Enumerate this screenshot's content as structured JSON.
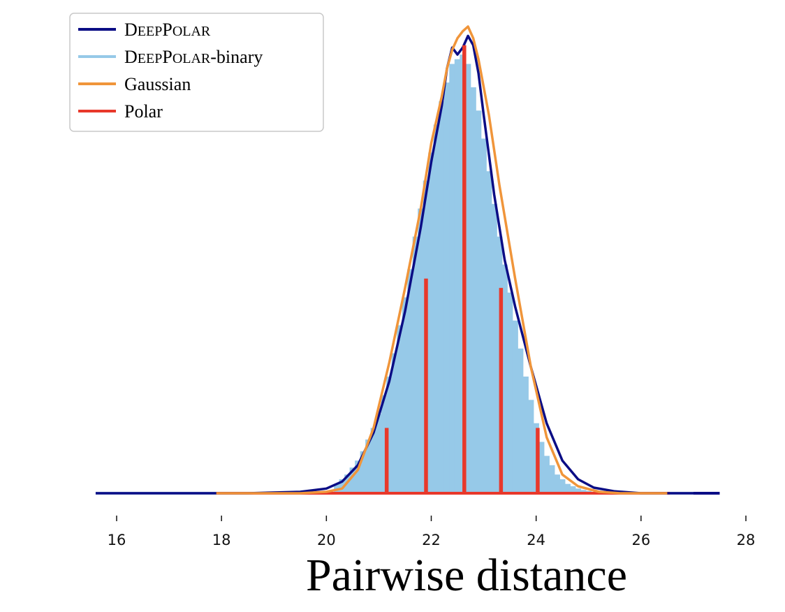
{
  "chart_data": {
    "type": "line",
    "title": "",
    "xlabel": "Pairwise distance",
    "ylabel": "",
    "xlim": [
      15.6,
      27.8
    ],
    "ylim": [
      0,
      1.0
    ],
    "xticks": [
      16,
      18,
      20,
      22,
      24,
      26,
      28
    ],
    "xtick_labels": [
      "16",
      "18",
      "20",
      "22",
      "24",
      "26",
      "28"
    ],
    "yticks": [],
    "grid": false,
    "legend": {
      "placement": "top-left",
      "entries": [
        {
          "label_parts": [
            {
              "t": "D",
              "sc": false
            },
            {
              "t": "EEP",
              "sc": true
            },
            {
              "t": "P",
              "sc": false
            },
            {
              "t": "OLAR",
              "sc": true
            }
          ],
          "color": "#0b0d85"
        },
        {
          "label_parts": [
            {
              "t": "D",
              "sc": false
            },
            {
              "t": "EEP",
              "sc": true
            },
            {
              "t": "P",
              "sc": false
            },
            {
              "t": "OLAR",
              "sc": true
            },
            {
              "t": "-binary",
              "sc": false
            }
          ],
          "color": "#96c9e8"
        },
        {
          "label_parts": [
            {
              "t": "Gaussian",
              "sc": false
            }
          ],
          "color": "#f0953a"
        },
        {
          "label_parts": [
            {
              "t": "Polar",
              "sc": false
            }
          ],
          "color": "#e8382b"
        }
      ]
    },
    "series": [
      {
        "name": "DeepPolar",
        "style": "line",
        "color": "#0b0d85",
        "x": [
          15.6,
          18.5,
          19.5,
          20.0,
          20.3,
          20.6,
          20.9,
          21.2,
          21.5,
          21.8,
          22.0,
          22.2,
          22.3,
          22.4,
          22.5,
          22.6,
          22.7,
          22.8,
          22.9,
          23.0,
          23.2,
          23.4,
          23.6,
          23.9,
          24.2,
          24.5,
          24.8,
          25.1,
          25.5,
          26.0,
          26.5,
          27.5
        ],
        "y": [
          0.0,
          0.0,
          0.003,
          0.01,
          0.025,
          0.06,
          0.13,
          0.24,
          0.39,
          0.57,
          0.71,
          0.83,
          0.91,
          0.955,
          0.94,
          0.955,
          0.98,
          0.96,
          0.9,
          0.81,
          0.64,
          0.5,
          0.4,
          0.27,
          0.15,
          0.07,
          0.03,
          0.012,
          0.004,
          0.0,
          0.0,
          0.0
        ]
      },
      {
        "name": "DeepPolar-binary",
        "style": "stems",
        "color": "#96c9e8",
        "x": [
          20.2,
          20.3,
          20.4,
          20.5,
          20.6,
          20.7,
          20.8,
          20.9,
          21.0,
          21.1,
          21.2,
          21.3,
          21.4,
          21.5,
          21.6,
          21.7,
          21.8,
          21.9,
          22.0,
          22.1,
          22.2,
          22.3,
          22.4,
          22.5,
          22.6,
          22.7,
          22.8,
          22.9,
          23.0,
          23.1,
          23.2,
          23.3,
          23.4,
          23.5,
          23.6,
          23.7,
          23.8,
          23.9,
          24.0,
          24.1,
          24.2,
          24.3,
          24.4,
          24.5,
          24.6,
          24.7,
          24.8,
          24.9,
          25.0
        ],
        "y": [
          0.02,
          0.03,
          0.04,
          0.055,
          0.07,
          0.09,
          0.115,
          0.14,
          0.17,
          0.21,
          0.25,
          0.3,
          0.36,
          0.42,
          0.48,
          0.55,
          0.61,
          0.67,
          0.73,
          0.79,
          0.84,
          0.88,
          0.92,
          0.93,
          0.94,
          0.92,
          0.87,
          0.82,
          0.76,
          0.69,
          0.62,
          0.55,
          0.49,
          0.43,
          0.37,
          0.31,
          0.25,
          0.2,
          0.15,
          0.11,
          0.08,
          0.06,
          0.04,
          0.03,
          0.02,
          0.015,
          0.01,
          0.007,
          0.005
        ],
        "baseline_x": [
          15.6,
          27.0
        ]
      },
      {
        "name": "Gaussian",
        "style": "line",
        "color": "#f0953a",
        "x": [
          17.9,
          19.5,
          20.0,
          20.3,
          20.6,
          20.9,
          21.2,
          21.5,
          21.8,
          22.0,
          22.2,
          22.3,
          22.4,
          22.5,
          22.6,
          22.7,
          22.8,
          22.9,
          23.0,
          23.1,
          23.3,
          23.6,
          23.9,
          24.2,
          24.5,
          24.8,
          25.2,
          25.6,
          26.5
        ],
        "y": [
          0.0,
          0.0,
          0.003,
          0.01,
          0.05,
          0.14,
          0.28,
          0.44,
          0.61,
          0.75,
          0.85,
          0.91,
          0.95,
          0.975,
          0.99,
          1.0,
          0.975,
          0.93,
          0.87,
          0.81,
          0.66,
          0.46,
          0.27,
          0.12,
          0.04,
          0.015,
          0.003,
          0.0,
          0.0
        ]
      },
      {
        "name": "Polar",
        "style": "stems",
        "color": "#e8382b",
        "x": [
          21.15,
          21.9,
          22.63,
          23.33,
          24.03
        ],
        "y": [
          0.14,
          0.46,
          0.96,
          0.44,
          0.14
        ],
        "baseline_x": [
          17.9,
          26.55
        ]
      }
    ]
  }
}
